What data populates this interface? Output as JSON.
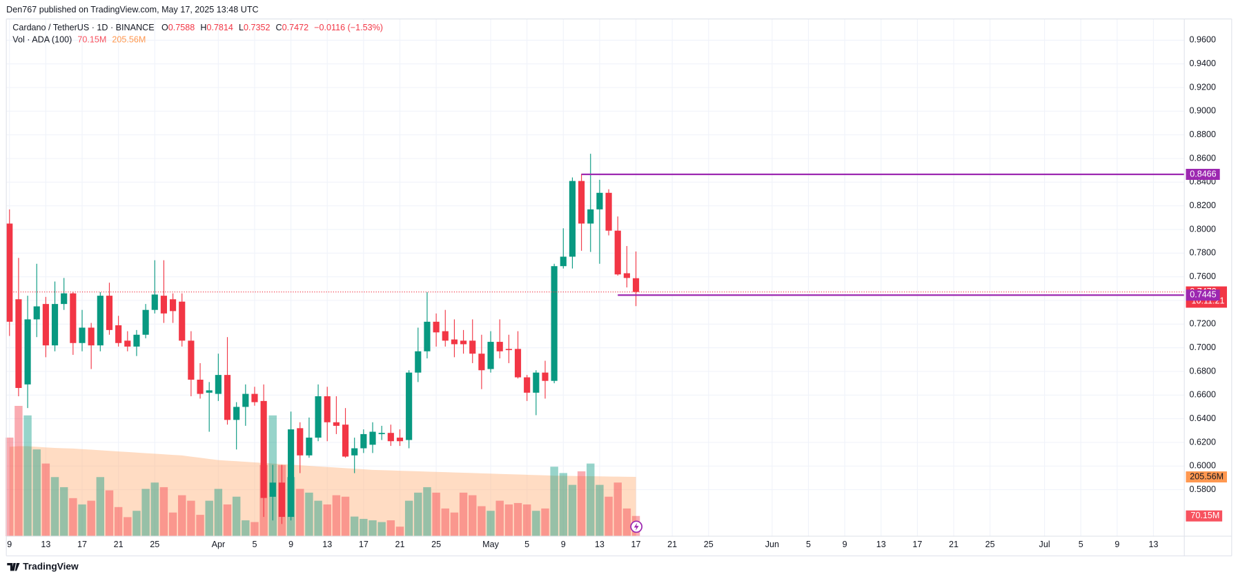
{
  "chart_data": {
    "type": "candlestick",
    "header": "Den767 published on TradingView.com, May 17, 2025 13:48 UTC",
    "symbol": "Cardano / TetherUS · 1D · BINANCE",
    "ohlc_letters": [
      "O",
      "H",
      "L",
      "C"
    ],
    "change": "−0.0116 (−1.53%)",
    "volume_name": "Vol · ADA (100)",
    "countdown": "10:11:21",
    "brand": "TradingView",
    "up_color": "#089981",
    "down_color": "#f23645",
    "level_color": "#9c27b0",
    "ma_color": "#ffb27a",
    "grid": true,
    "open": [
      0.805,
      0.741,
      0.669,
      0.724,
      0.737,
      0.702,
      0.737,
      0.746,
      0.704,
      0.717,
      0.702,
      0.744,
      0.719,
      0.706,
      0.701,
      0.711,
      0.732,
      0.744,
      0.741,
      0.739,
      0.706,
      0.673,
      0.662,
      0.661,
      0.677,
      0.639,
      0.65,
      0.661,
      0.655,
      0.574,
      0.586,
      0.557,
      0.632,
      0.609,
      0.624,
      0.659,
      0.637,
      0.635,
      0.609,
      0.615,
      0.618,
      0.627,
      0.628,
      0.624,
      0.622,
      0.679,
      0.697,
      0.722,
      0.714,
      0.707,
      0.706,
      0.706,
      0.695,
      0.682,
      0.705,
      0.699,
      0.699,
      0.675,
      0.662,
      0.679,
      0.672,
      0.769,
      0.777,
      0.841,
      0.805,
      0.817,
      0.831,
      0.799,
      0.763,
      0.7588
    ],
    "high": [
      0.817,
      0.776,
      0.744,
      0.771,
      0.743,
      0.756,
      0.759,
      0.747,
      0.732,
      0.721,
      0.747,
      0.755,
      0.727,
      0.714,
      0.715,
      0.737,
      0.774,
      0.774,
      0.746,
      0.746,
      0.714,
      0.687,
      0.671,
      0.695,
      0.709,
      0.654,
      0.669,
      0.667,
      0.669,
      0.601,
      0.601,
      0.646,
      0.637,
      0.641,
      0.669,
      0.667,
      0.659,
      0.649,
      0.624,
      0.631,
      0.637,
      0.634,
      0.635,
      0.631,
      0.681,
      0.717,
      0.747,
      0.729,
      0.732,
      0.724,
      0.715,
      0.724,
      0.711,
      0.714,
      0.724,
      0.711,
      0.714,
      0.677,
      0.681,
      0.689,
      0.771,
      0.801,
      0.844,
      0.847,
      0.864,
      0.842,
      0.834,
      0.811,
      0.786,
      0.7814
    ],
    "low": [
      0.71,
      0.659,
      0.649,
      0.709,
      0.692,
      0.697,
      0.732,
      0.694,
      0.697,
      0.682,
      0.697,
      0.711,
      0.701,
      0.697,
      0.693,
      0.708,
      0.729,
      0.721,
      0.721,
      0.701,
      0.659,
      0.657,
      0.629,
      0.655,
      0.635,
      0.614,
      0.634,
      0.651,
      0.557,
      0.554,
      0.551,
      0.554,
      0.594,
      0.607,
      0.621,
      0.621,
      0.627,
      0.607,
      0.594,
      0.611,
      0.611,
      0.622,
      0.617,
      0.617,
      0.615,
      0.671,
      0.691,
      0.701,
      0.701,
      0.692,
      0.695,
      0.687,
      0.665,
      0.679,
      0.691,
      0.687,
      0.674,
      0.655,
      0.643,
      0.657,
      0.67,
      0.767,
      0.767,
      0.782,
      0.781,
      0.771,
      0.795,
      0.761,
      0.751,
      0.7352
    ],
    "close": [
      0.722,
      0.666,
      0.724,
      0.735,
      0.702,
      0.737,
      0.746,
      0.704,
      0.717,
      0.702,
      0.744,
      0.715,
      0.704,
      0.701,
      0.711,
      0.732,
      0.745,
      0.729,
      0.731,
      0.706,
      0.673,
      0.661,
      0.664,
      0.677,
      0.639,
      0.65,
      0.661,
      0.654,
      0.573,
      0.586,
      0.557,
      0.631,
      0.609,
      0.624,
      0.659,
      0.637,
      0.634,
      0.608,
      0.615,
      0.627,
      0.629,
      0.628,
      0.621,
      0.621,
      0.679,
      0.697,
      0.722,
      0.713,
      0.706,
      0.703,
      0.703,
      0.695,
      0.681,
      0.705,
      0.697,
      0.698,
      0.675,
      0.662,
      0.679,
      0.672,
      0.769,
      0.777,
      0.841,
      0.805,
      0.817,
      0.831,
      0.799,
      0.762,
      0.759,
      0.7472
    ],
    "volume": {
      "values": [
        342,
        452,
        419,
        301,
        252,
        205,
        170,
        132,
        110,
        123,
        205,
        159,
        101,
        66,
        88,
        164,
        186,
        170,
        82,
        142,
        123,
        74,
        123,
        164,
        110,
        137,
        55,
        49,
        247,
        419,
        247,
        205,
        164,
        151,
        123,
        110,
        142,
        137,
        68,
        60,
        55,
        49,
        55,
        33,
        123,
        151,
        170,
        151,
        96,
        82,
        151,
        142,
        104,
        88,
        123,
        110,
        115,
        110,
        88,
        96,
        241,
        219,
        178,
        225,
        252,
        178,
        137,
        186,
        96,
        70.15
      ],
      "value_labels": [
        null,
        null,
        null,
        null,
        null,
        null,
        null,
        null,
        null,
        null,
        null,
        null,
        null,
        null,
        null,
        null,
        null,
        null,
        null,
        null,
        null,
        null,
        null,
        null,
        null,
        null,
        null,
        null,
        null,
        null,
        null,
        null,
        null,
        null,
        null,
        null,
        null,
        null,
        null,
        null,
        null,
        null,
        null,
        null,
        null,
        null,
        null,
        null,
        null,
        null,
        null,
        null,
        null,
        null,
        null,
        null,
        null,
        null,
        null,
        null,
        null,
        null,
        null,
        null,
        null,
        null,
        null,
        null,
        null,
        "70.15M"
      ]
    },
    "volume_ma": {
      "values": [
        310,
        312,
        312,
        310,
        308,
        306,
        305,
        304,
        302,
        300,
        298,
        296,
        294,
        292,
        290,
        288,
        286,
        284,
        282,
        280,
        276,
        272,
        268,
        264,
        262,
        260,
        258,
        256,
        254,
        252,
        250,
        248,
        246,
        244,
        242,
        240,
        238,
        236,
        234,
        232,
        230,
        229,
        228,
        227,
        226,
        225,
        224,
        223,
        222,
        221,
        220,
        219,
        218,
        217,
        216,
        215,
        214,
        213,
        212,
        211,
        210,
        209.5,
        209,
        208.5,
        208,
        207.5,
        207,
        206.5,
        206,
        205.56
      ],
      "value_labels": [
        null,
        null,
        null,
        null,
        null,
        null,
        null,
        null,
        null,
        null,
        null,
        null,
        null,
        null,
        null,
        null,
        null,
        null,
        null,
        null,
        null,
        null,
        null,
        null,
        null,
        null,
        null,
        null,
        null,
        null,
        null,
        null,
        null,
        null,
        null,
        null,
        null,
        null,
        null,
        null,
        null,
        null,
        null,
        null,
        null,
        null,
        null,
        null,
        null,
        null,
        null,
        null,
        null,
        null,
        null,
        null,
        null,
        null,
        null,
        null,
        null,
        null,
        null,
        null,
        null,
        null,
        null,
        null,
        null,
        "205.56M"
      ]
    },
    "volume_ylim": [
      0,
      465
    ],
    "levels": [
      {
        "value": 0.8466,
        "from": 63
      },
      {
        "value": 0.7445,
        "from": 67
      }
    ],
    "xlim": [
      -0.35,
      129.4
    ],
    "ylim": [
      0.5407,
      0.978
    ],
    "yticks": [
      {
        "value": 0.58,
        "label": "0.5800"
      },
      {
        "value": 0.6,
        "label": "0.6000"
      },
      {
        "value": 0.62,
        "label": "0.6200"
      },
      {
        "value": 0.64,
        "label": "0.6400"
      },
      {
        "value": 0.66,
        "label": "0.6600"
      },
      {
        "value": 0.68,
        "label": "0.6800"
      },
      {
        "value": 0.7,
        "label": "0.7000"
      },
      {
        "value": 0.72,
        "label": "0.7200"
      },
      {
        "value": 0.74,
        "label": "0.7400"
      },
      {
        "value": 0.76,
        "label": "0.7600"
      },
      {
        "value": 0.78,
        "label": "0.7800"
      },
      {
        "value": 0.8,
        "label": "0.8000"
      },
      {
        "value": 0.82,
        "label": "0.8200"
      },
      {
        "value": 0.84,
        "label": "0.8400"
      },
      {
        "value": 0.86,
        "label": "0.8600"
      },
      {
        "value": 0.88,
        "label": "0.8800"
      },
      {
        "value": 0.9,
        "label": "0.9000"
      },
      {
        "value": 0.92,
        "label": "0.9200"
      },
      {
        "value": 0.94,
        "label": "0.9400"
      },
      {
        "value": 0.96,
        "label": "0.9600"
      }
    ],
    "xticks": [
      {
        "value": 0,
        "label": "9"
      },
      {
        "value": 4,
        "label": "13"
      },
      {
        "value": 8,
        "label": "17"
      },
      {
        "value": 12,
        "label": "21"
      },
      {
        "value": 16,
        "label": "25"
      },
      {
        "value": 23,
        "label": "Apr"
      },
      {
        "value": 27,
        "label": "5"
      },
      {
        "value": 31,
        "label": "9"
      },
      {
        "value": 35,
        "label": "13"
      },
      {
        "value": 39,
        "label": "17"
      },
      {
        "value": 43,
        "label": "21"
      },
      {
        "value": 47,
        "label": "25"
      },
      {
        "value": 53,
        "label": "May"
      },
      {
        "value": 57,
        "label": "5"
      },
      {
        "value": 61,
        "label": "9"
      },
      {
        "value": 65,
        "label": "13"
      },
      {
        "value": 69,
        "label": "17"
      },
      {
        "value": 73,
        "label": "21"
      },
      {
        "value": 77,
        "label": "25"
      },
      {
        "value": 84,
        "label": "Jun"
      },
      {
        "value": 88,
        "label": "5"
      },
      {
        "value": 92,
        "label": "9"
      },
      {
        "value": 96,
        "label": "13"
      },
      {
        "value": 100,
        "label": "17"
      },
      {
        "value": 104,
        "label": "21"
      },
      {
        "value": 108,
        "label": "25"
      },
      {
        "value": 114,
        "label": "Jul"
      },
      {
        "value": 118,
        "label": "5"
      },
      {
        "value": 122,
        "label": "9"
      },
      {
        "value": 126,
        "label": "13"
      }
    ]
  }
}
